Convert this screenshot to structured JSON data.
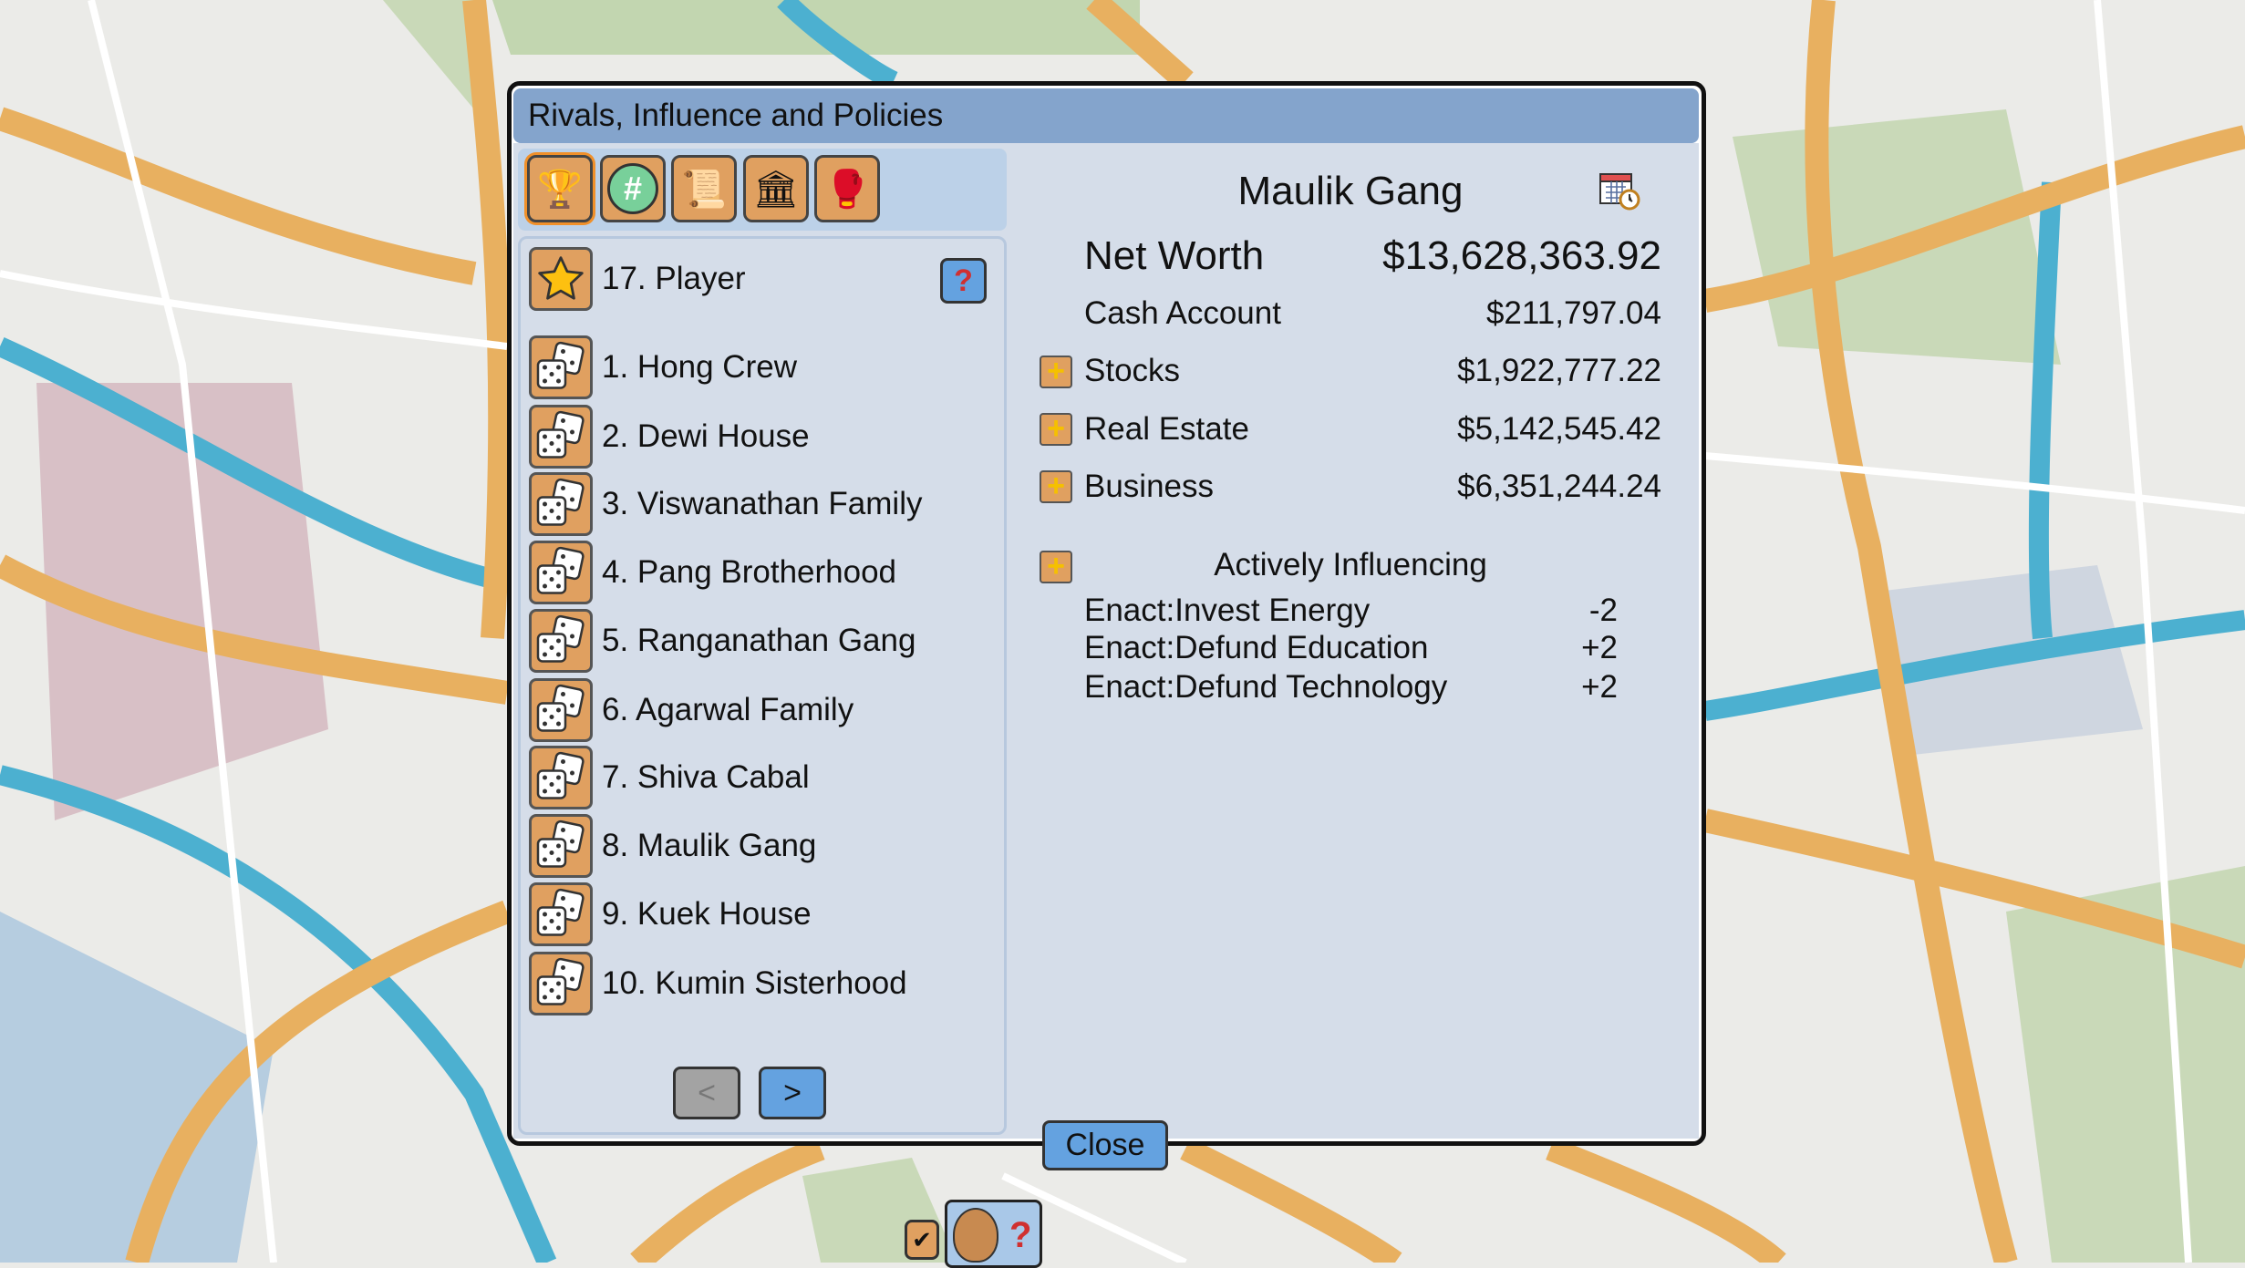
{
  "window": {
    "title": "Rivals, Influence and Policies"
  },
  "tabs": [
    {
      "icon": "leaderboard-podium-icon",
      "active": true
    },
    {
      "icon": "hashtag-chat-icon",
      "active": false
    },
    {
      "icon": "policy-document-icon",
      "active": false
    },
    {
      "icon": "law-government-icon",
      "active": false
    },
    {
      "icon": "rivalry-fist-icon",
      "active": false
    }
  ],
  "player": {
    "label": "17. Player",
    "icon": "star-icon"
  },
  "rivals": [
    {
      "label": "1. Hong Crew"
    },
    {
      "label": "2. Dewi House"
    },
    {
      "label": "3. Viswanathan Family"
    },
    {
      "label": "4. Pang Brotherhood"
    },
    {
      "label": "5. Ranganathan Gang"
    },
    {
      "label": "6. Agarwal Family"
    },
    {
      "label": "7. Shiva Cabal"
    },
    {
      "label": "8. Maulik Gang"
    },
    {
      "label": "9. Kuek House"
    },
    {
      "label": "10. Kumin Sisterhood"
    }
  ],
  "pager": {
    "prev": "<",
    "next": ">"
  },
  "detail": {
    "name": "Maulik Gang",
    "net_worth_label": "Net Worth",
    "net_worth": "$13,628,363.92",
    "cash_label": "Cash Account",
    "cash": "$211,797.04",
    "stocks_label": "Stocks",
    "stocks": "$1,922,777.22",
    "real_estate_label": "Real Estate",
    "real_estate": "$5,142,545.42",
    "business_label": "Business",
    "business": "$6,351,244.24",
    "influencing_title": "Actively Influencing",
    "influences": [
      {
        "policy": "Enact:Invest Energy",
        "value": "-2"
      },
      {
        "policy": "Enact:Defund Education",
        "value": "+2"
      },
      {
        "policy": "Enact:Defund Technology",
        "value": "+2"
      }
    ]
  },
  "close_label": "Close",
  "colors": {
    "accent_blue": "#64a2e0",
    "title_bar": "#84a4cc",
    "icon_orange": "#e0a060",
    "panel": "#d5dde9"
  }
}
